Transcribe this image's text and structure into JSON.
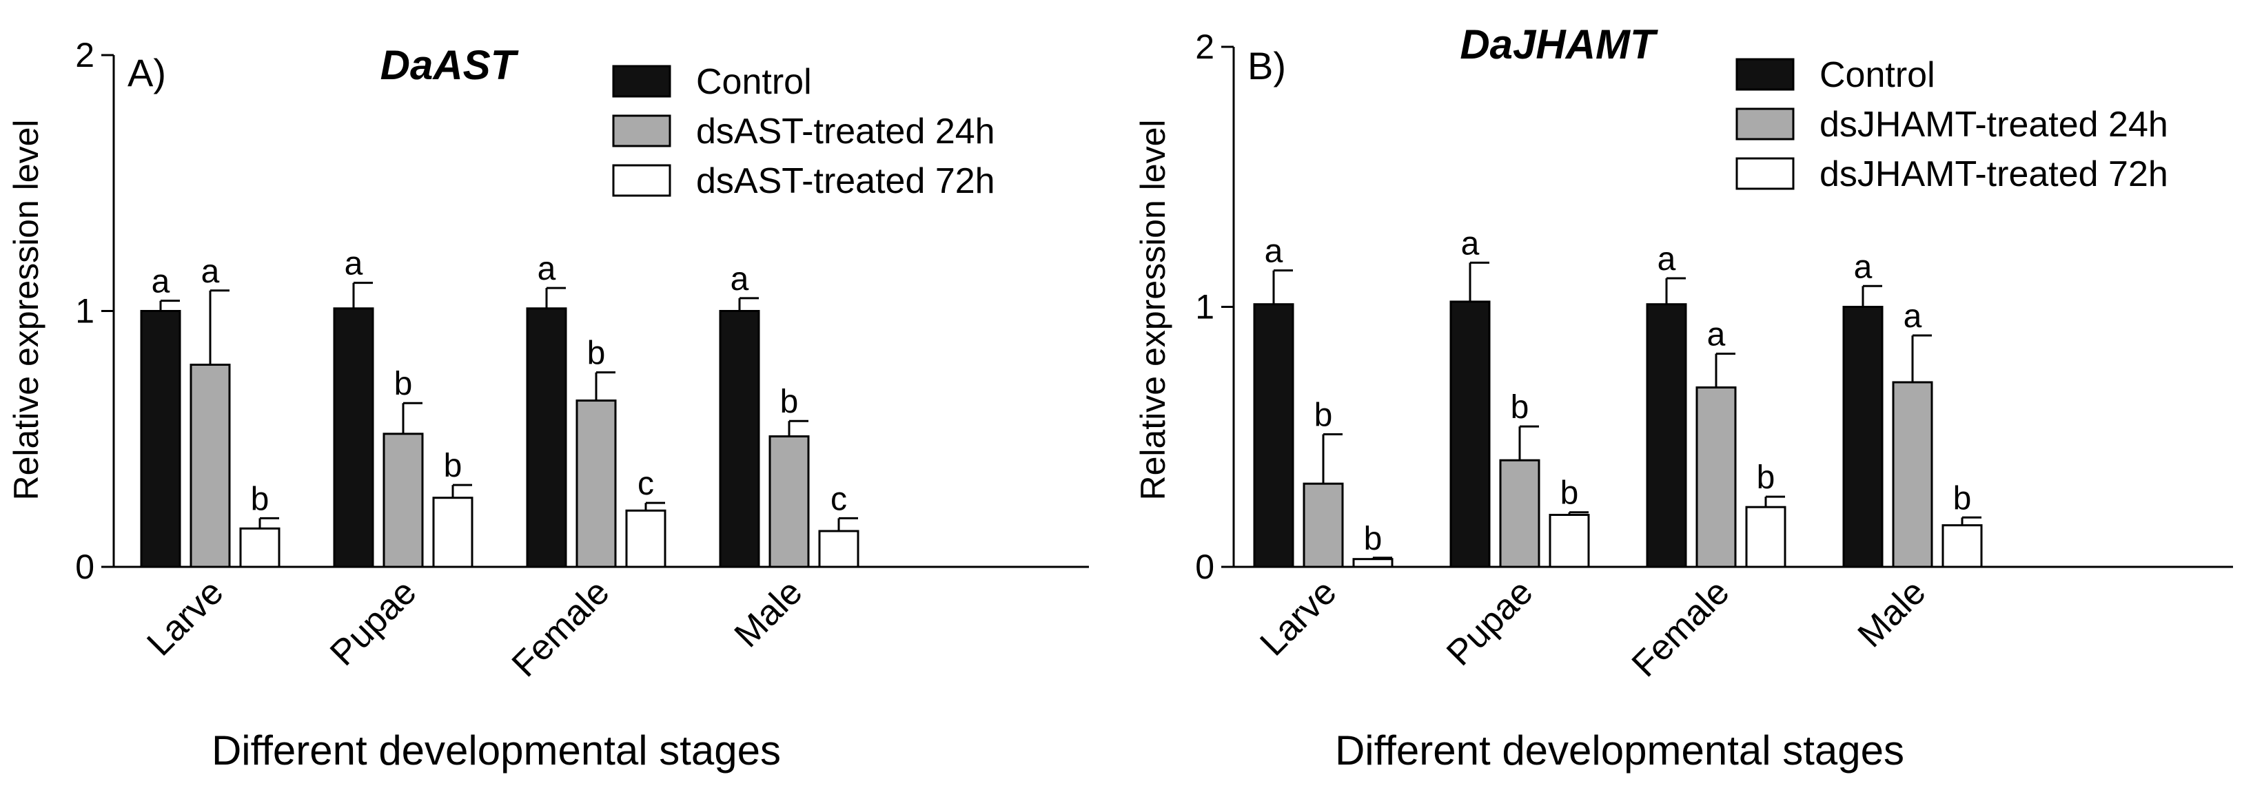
{
  "chart_data": [
    {
      "type": "bar",
      "panel": "A)",
      "title": "DaAST",
      "xlabel": "Different developmental stages",
      "ylabel": "Relative expression level",
      "ylim": [
        0,
        2
      ],
      "yticks": [
        "0",
        "1",
        "2"
      ],
      "categories": [
        "Larve",
        "Pupae",
        "Female",
        "Male"
      ],
      "legend_position": "top-right",
      "series": [
        {
          "name": "Control",
          "color": "#111111",
          "values": [
            1.0,
            1.01,
            1.01,
            1.0
          ],
          "errors": [
            0.04,
            0.1,
            0.08,
            0.05
          ],
          "labels": [
            "a",
            "a",
            "a",
            "a"
          ]
        },
        {
          "name": "dsAST-treated 24h",
          "color": "#aaaaaa",
          "values": [
            0.79,
            0.52,
            0.65,
            0.51
          ],
          "errors": [
            0.29,
            0.12,
            0.11,
            0.06
          ],
          "labels": [
            "a",
            "b",
            "b",
            "b"
          ]
        },
        {
          "name": "dsAST-treated 72h",
          "color": "#ffffff",
          "values": [
            0.15,
            0.27,
            0.22,
            0.14
          ],
          "errors": [
            0.04,
            0.05,
            0.03,
            0.05
          ],
          "labels": [
            "b",
            "b",
            "c",
            "c"
          ]
        }
      ]
    },
    {
      "type": "bar",
      "panel": "B)",
      "title": "DaJHAMT",
      "xlabel": "Different developmental stages",
      "ylabel": "Relative expression level",
      "ylim": [
        0,
        2
      ],
      "yticks": [
        "0",
        "1",
        "2"
      ],
      "categories": [
        "Larve",
        "Pupae",
        "Female",
        "Male"
      ],
      "legend_position": "top-right",
      "series": [
        {
          "name": "Control",
          "color": "#111111",
          "values": [
            1.01,
            1.02,
            1.01,
            1.0
          ],
          "errors": [
            0.13,
            0.15,
            0.1,
            0.08
          ],
          "labels": [
            "a",
            "a",
            "a",
            "a"
          ]
        },
        {
          "name": "dsJHAMT-treated 24h",
          "color": "#aaaaaa",
          "values": [
            0.32,
            0.41,
            0.69,
            0.71
          ],
          "errors": [
            0.19,
            0.13,
            0.13,
            0.18
          ],
          "labels": [
            "b",
            "b",
            "a",
            "a"
          ]
        },
        {
          "name": "dsJHAMT-treated 72h",
          "color": "#ffffff",
          "values": [
            0.03,
            0.2,
            0.23,
            0.16
          ],
          "errors": [
            0.005,
            0.01,
            0.04,
            0.03
          ],
          "labels": [
            "b",
            "b",
            "b",
            "b"
          ]
        }
      ]
    }
  ]
}
